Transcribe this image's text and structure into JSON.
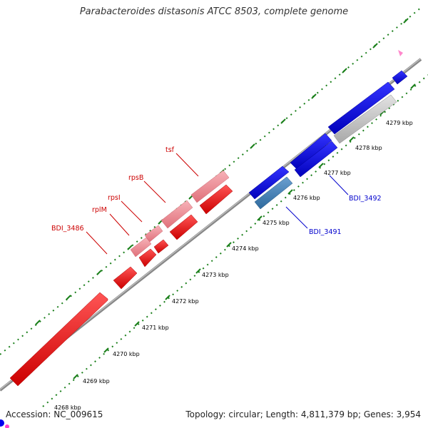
{
  "title": "Parabacteroides distasonis ATCC 8503, complete genome",
  "accession": "Accession: NC_009615",
  "summary": "Topology: circular; Length: 4,811,379 bp; Genes: 3,954",
  "axis_ticks": [
    "4269 kbp",
    "4270 kbp",
    "4271 kbp",
    "4272 kbp",
    "4273 kbp",
    "4274 kbp",
    "4275 kbp",
    "4276 kbp",
    "4277 kbp",
    "4278 kbp",
    "4279 kbp"
  ],
  "partial_tick": "4268 kbp",
  "labels": {
    "red": [
      "tsf",
      "rpsB",
      "rpsI",
      "rplM",
      "BDI_3486"
    ],
    "blue": [
      "BDI_3492",
      "BDI_3491"
    ]
  },
  "colors": {
    "forward": "#0000ee",
    "forward_light": "#c8c8c8",
    "forward_mid": "#3f7fb8",
    "reverse": "#ee0000",
    "reverse_light": "#ee8d95",
    "axis": "#888888",
    "grid": "#1a7f1a",
    "label_red": "#cc0000",
    "label_blue": "#0000cc"
  }
}
